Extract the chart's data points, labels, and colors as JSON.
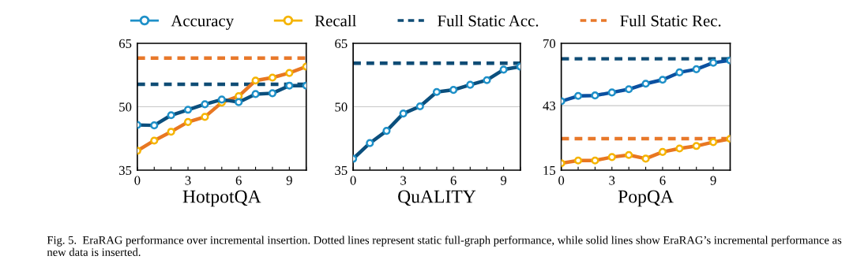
{
  "chart_data": [
    {
      "type": "line",
      "xlabel": "HotpotQA",
      "x": [
        0,
        1,
        2,
        3,
        4,
        5,
        6,
        7,
        8,
        9,
        10
      ],
      "xlim": [
        0,
        10
      ],
      "xticks": [
        0,
        {
          "value": 1,
          "label": null
        },
        {
          "value": 2,
          "label": null
        },
        3,
        {
          "value": 4,
          "label": null
        },
        {
          "value": 5,
          "label": null
        },
        6,
        {
          "value": 7,
          "label": null
        },
        {
          "value": 8,
          "label": null
        },
        9,
        {
          "value": 10,
          "label": null
        }
      ],
      "ylim": [
        35,
        65
      ],
      "yticks": [
        35,
        50,
        65
      ],
      "grid": "y",
      "marker": "circle",
      "line_style": "solid",
      "legend": "top",
      "series": [
        {
          "name": "Accuracy",
          "color": "#0b4f7d",
          "values": [
            45.7,
            45.6,
            48.0,
            49.3,
            50.6,
            51.7,
            51.1,
            53.0,
            53.2,
            55.0,
            55.0
          ]
        },
        {
          "name": "Recall",
          "color": "#e87722",
          "values": [
            39.6,
            42.0,
            44.1,
            46.4,
            47.6,
            51.0,
            52.5,
            56.2,
            56.9,
            58.0,
            59.5
          ]
        }
      ],
      "ref_lines": [
        {
          "axis": "y",
          "value": 55.3,
          "label": "Full Static Acc.",
          "color": "#0f4c75",
          "line_style": "dashed"
        },
        {
          "axis": "y",
          "value": 61.5,
          "label": "Full Static Rec.",
          "color": "#e8782a",
          "line_style": "dashed"
        }
      ],
      "annotations": [
        "Fig. 5.  EraRAG performance over incremental insertion. Dotted lines represent static full-graph performance, while solid lines show EraRAG’s incremental performance as new data is inserted."
      ]
    },
    {
      "type": "line",
      "xlabel": "QuALITY",
      "x": [
        0,
        1,
        2,
        3,
        4,
        5,
        6,
        7,
        8,
        9,
        10
      ],
      "xlim": [
        0,
        10
      ],
      "xticks": [
        0,
        {
          "value": 1,
          "label": null
        },
        {
          "value": 2,
          "label": null
        },
        3,
        {
          "value": 4,
          "label": null
        },
        {
          "value": 5,
          "label": null
        },
        6,
        {
          "value": 7,
          "label": null
        },
        {
          "value": 8,
          "label": null
        },
        9,
        {
          "value": 10,
          "label": null
        }
      ],
      "ylim": [
        35,
        65
      ],
      "yticks": [
        35,
        50,
        65
      ],
      "grid": "y",
      "marker": "circle",
      "line_style": "solid",
      "series": [
        {
          "color": "#0b4f7d",
          "values": [
            37.7,
            41.4,
            44.3,
            48.4,
            50.1,
            53.5,
            54.0,
            55.2,
            56.3,
            58.8,
            59.5
          ]
        }
      ],
      "ref_lines": [
        {
          "axis": "y",
          "value": 60.3,
          "color": "#0f4c75",
          "line_style": "dashed"
        }
      ]
    },
    {
      "type": "line",
      "xlabel": "PopQA",
      "x": [
        0,
        1,
        2,
        3,
        4,
        5,
        6,
        7,
        8,
        9,
        10
      ],
      "xlim": [
        0,
        10
      ],
      "xticks": [
        0,
        {
          "value": 1,
          "label": null
        },
        {
          "value": 2,
          "label": null
        },
        3,
        {
          "value": 4,
          "label": null
        },
        {
          "value": 5,
          "label": null
        },
        6,
        {
          "value": 7,
          "label": null
        },
        {
          "value": 8,
          "label": null
        },
        9,
        {
          "value": 10,
          "label": null
        }
      ],
      "ylim": [
        15,
        70
      ],
      "yticks": [
        15,
        43,
        70
      ],
      "grid": "y",
      "marker": "circle",
      "line_style": "solid",
      "series": [
        {
          "color": "#0b50a0",
          "values": [
            44.9,
            47.2,
            47.4,
            48.7,
            50.1,
            52.5,
            54.2,
            57.4,
            58.8,
            61.6,
            62.6
          ]
        },
        {
          "color": "#e87722",
          "values": [
            18.0,
            19.2,
            19.2,
            20.7,
            21.6,
            20.0,
            22.9,
            24.4,
            25.5,
            27.2,
            28.6
          ]
        }
      ],
      "ref_lines": [
        {
          "axis": "y",
          "value": 63.3,
          "color": "#0f4c75",
          "line_style": "dashed"
        },
        {
          "axis": "y",
          "value": 28.7,
          "color": "#e8782a",
          "line_style": "dashed"
        }
      ]
    }
  ]
}
